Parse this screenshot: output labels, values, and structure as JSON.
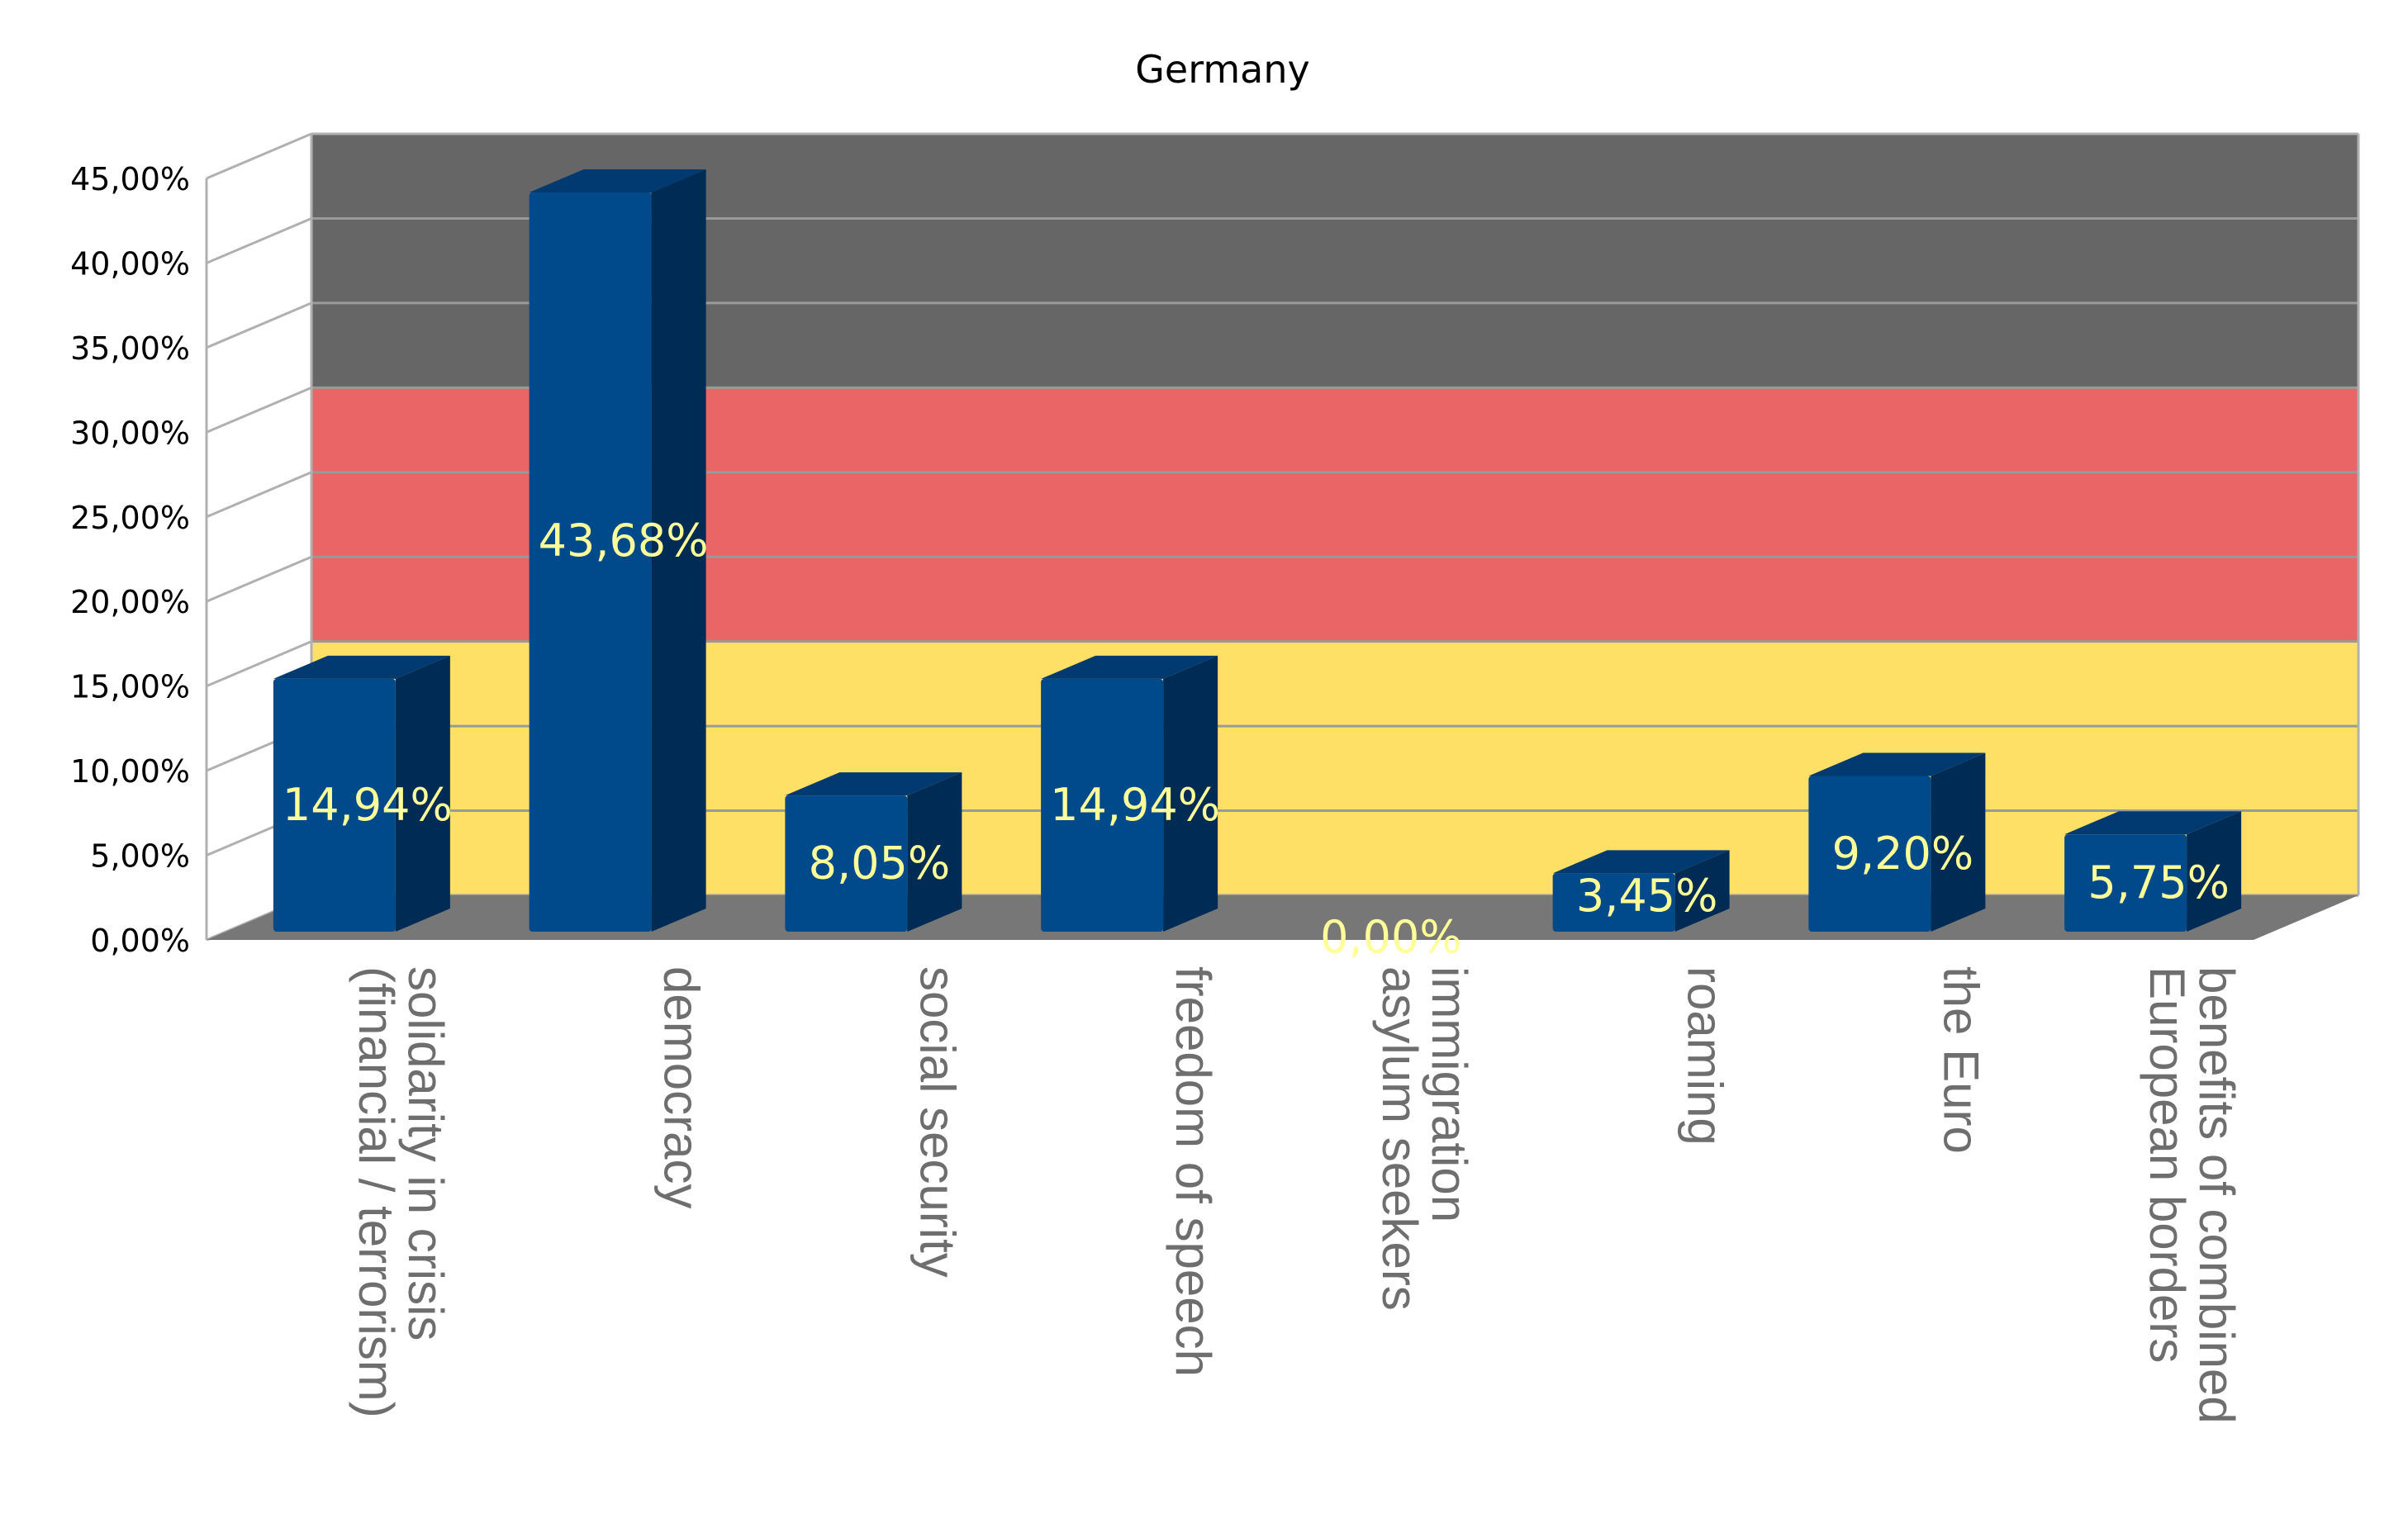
{
  "chart_data": {
    "type": "bar",
    "title": "Germany",
    "categories": [
      [
        "solidarity in crisis",
        "(financial / terrorism)"
      ],
      [
        "democracy"
      ],
      [
        "social security"
      ],
      [
        "freedom of speech"
      ],
      [
        "immigration",
        "asylum seekers"
      ],
      [
        "roaming"
      ],
      [
        "the Euro"
      ],
      [
        "benefits of combined",
        "European borders"
      ]
    ],
    "values": [
      14.94,
      43.68,
      8.05,
      14.94,
      0.0,
      3.45,
      9.2,
      5.75
    ],
    "value_labels": [
      "14,94%",
      "43,68%",
      "8,05%",
      "14,94%",
      "0,00%",
      "3,45%",
      "9,20%",
      "5,75%"
    ],
    "ylim": [
      0,
      45
    ],
    "yticks": [
      "0,00%",
      "5,00%",
      "10,00%",
      "15,00%",
      "20,00%",
      "25,00%",
      "30,00%",
      "35,00%",
      "40,00%",
      "45,00%"
    ],
    "grid": true,
    "style": "3d-bar",
    "colors": {
      "bar_front": "#004a8c",
      "bar_side": "#002b54",
      "bar_top": "#003a70",
      "label": "#ffff99",
      "band_black": "#666666",
      "band_red": "#ea6565",
      "band_gold": "#ffe067",
      "floor": "#777777"
    },
    "background_bands": [
      {
        "name": "black",
        "from": 30,
        "to": 45
      },
      {
        "name": "red",
        "from": 15,
        "to": 30
      },
      {
        "name": "gold",
        "from": 0,
        "to": 15
      }
    ]
  }
}
